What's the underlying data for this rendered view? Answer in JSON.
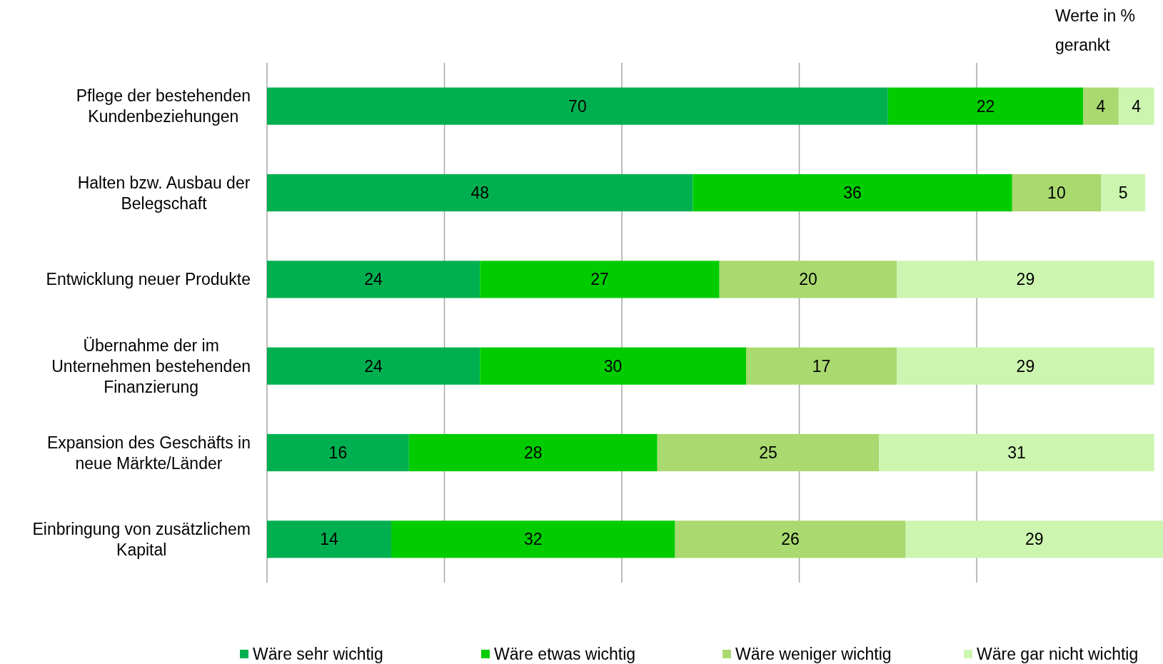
{
  "chart_data": {
    "type": "bar",
    "orientation": "horizontal",
    "stacked": true,
    "data_labels": true,
    "grid": "x",
    "legend": "bottom",
    "annotations": [
      "Werte in % gerankt"
    ],
    "categories": [
      "Pflege der bestehenden Kundenbeziehungen",
      "Halten bzw. Ausbau der Belegschaft",
      "Entwicklung neuer Produkte",
      "Übernahme der im Unternehmen bestehenden Finanzierung",
      "Expansion des Geschäfts in neue Märkte/Länder",
      "Einbringung von zusätzlichem Kapital"
    ],
    "xlim": [
      0,
      101
    ],
    "xticks": [
      {
        "value": 0,
        "label": null
      },
      {
        "value": 20,
        "label": null
      },
      {
        "value": 40,
        "label": null
      },
      {
        "value": 60,
        "label": null
      },
      {
        "value": 80,
        "label": null
      }
    ],
    "series": [
      {
        "name": "Wäre sehr wichtig",
        "color": "#00b050",
        "values": [
          70,
          48,
          24,
          24,
          16,
          14
        ]
      },
      {
        "name": "Wäre etwas wichtig",
        "color": "#00cc00",
        "values": [
          22,
          36,
          27,
          30,
          28,
          32
        ]
      },
      {
        "name": "Wäre weniger wichtig",
        "color": "#a9d96f",
        "values": [
          4,
          10,
          20,
          17,
          25,
          26
        ]
      },
      {
        "name": "Wäre gar nicht wichtig",
        "color": "#ccf5b0",
        "values": [
          4,
          5,
          29,
          29,
          31,
          29
        ]
      }
    ]
  }
}
